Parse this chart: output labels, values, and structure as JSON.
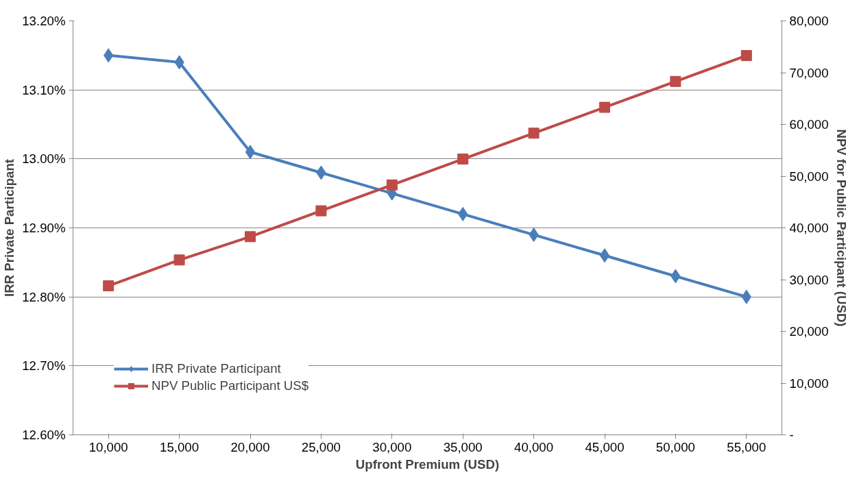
{
  "chart_data": {
    "type": "line",
    "xlabel": "Upfront Premium (USD)",
    "ylabel": "IRR Private Participant",
    "y2label": "NPV for Public Participant (USD)",
    "categories": [
      "10,000",
      "15,000",
      "20,000",
      "25,000",
      "30,000",
      "35,000",
      "40,000",
      "45,000",
      "50,000",
      "55,000"
    ],
    "series": [
      {
        "name": "IRR Private Participant",
        "color": "#4a7ebb",
        "marker": "diamond",
        "values": [
          13.15,
          13.14,
          13.01,
          12.98,
          12.95,
          12.92,
          12.89,
          12.86,
          12.83,
          12.8
        ]
      },
      {
        "name": "NPV Public Participant US$",
        "color": "#be4b48",
        "marker": "square",
        "axis": "y2",
        "values": [
          28800,
          33800,
          38300,
          43300,
          48300,
          53300,
          58300,
          63300,
          68300,
          73300
        ]
      }
    ],
    "ylim": [
      12.6,
      13.2
    ],
    "yticks": [
      {
        "value": 12.6,
        "label": "12.60%"
      },
      {
        "value": 12.7,
        "label": "12.70%"
      },
      {
        "value": 12.8,
        "label": "12.80%"
      },
      {
        "value": 12.9,
        "label": "12.90%"
      },
      {
        "value": 13.0,
        "label": "13.00%"
      },
      {
        "value": 13.1,
        "label": "13.10%"
      },
      {
        "value": 13.2,
        "label": "13.20%"
      }
    ],
    "y2lim": [
      0,
      80000
    ],
    "y2ticks": [
      {
        "value": 0,
        "label": "-"
      },
      {
        "value": 10000,
        "label": "10,000"
      },
      {
        "value": 20000,
        "label": "20,000"
      },
      {
        "value": 30000,
        "label": "30,000"
      },
      {
        "value": 40000,
        "label": "40,000"
      },
      {
        "value": 50000,
        "label": "50,000"
      },
      {
        "value": 60000,
        "label": "60,000"
      },
      {
        "value": 70000,
        "label": "70,000"
      },
      {
        "value": 80000,
        "label": "80,000"
      }
    ],
    "grid": "y",
    "legend": "bottom left"
  }
}
